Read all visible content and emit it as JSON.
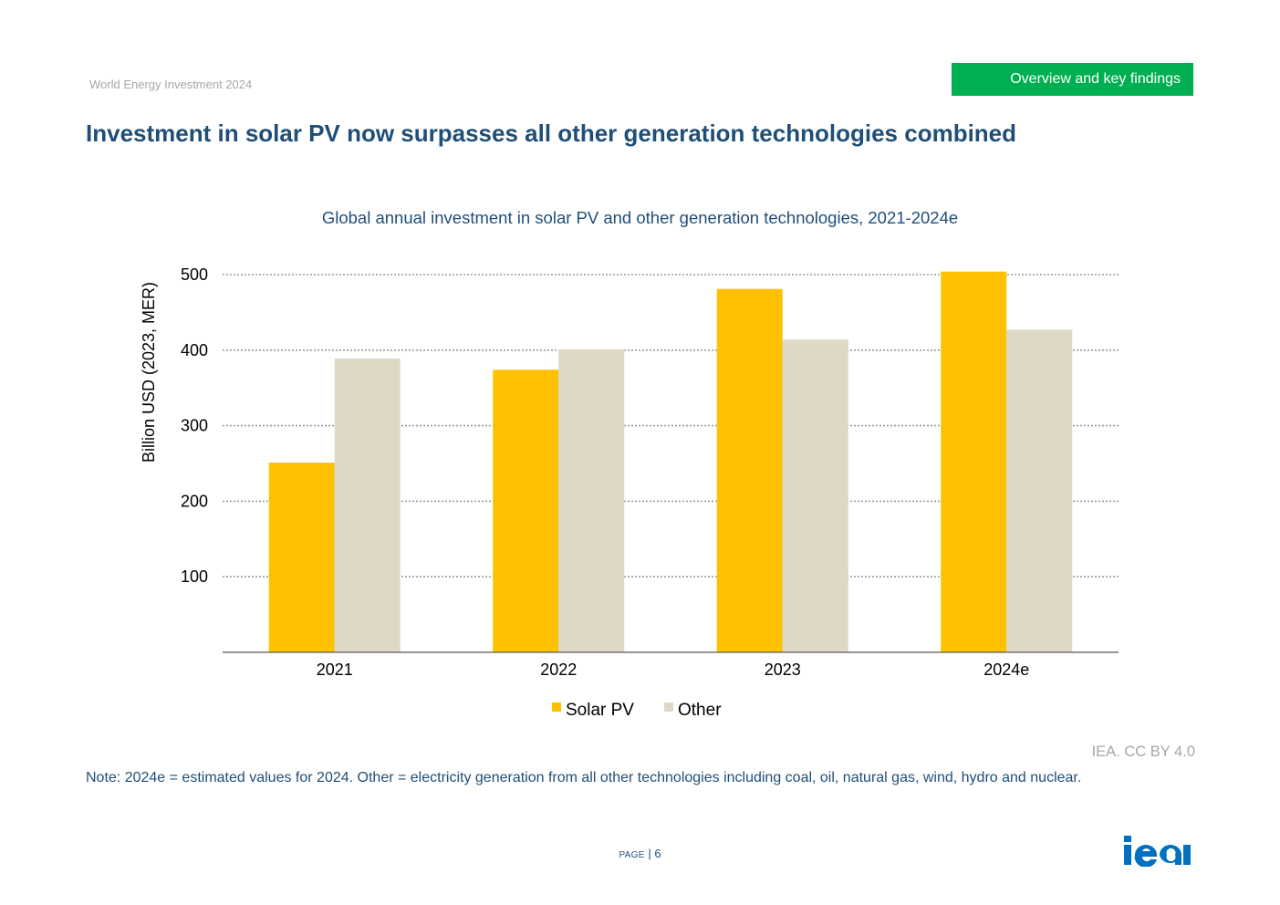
{
  "header": {
    "report_name": "World Energy Investment 2024",
    "section_label": "Overview and key findings",
    "section_color": "#00b050"
  },
  "page_title": "Investment in solar PV now surpasses all other generation technologies combined",
  "chart_data": {
    "type": "bar",
    "title": "Global annual investment in solar PV and other generation technologies, 2021-2024e",
    "xlabel": "",
    "ylabel": "Billion USD (2023, MER)",
    "ylim": [
      0,
      500
    ],
    "yticks": [
      100,
      200,
      300,
      400,
      500
    ],
    "grid": true,
    "legend_position": "bottom",
    "categories": [
      "2021",
      "2022",
      "2023",
      "2024e"
    ],
    "series": [
      {
        "name": "Solar PV",
        "color": "#ffc000",
        "values": [
          251,
          374,
          481,
          504
        ]
      },
      {
        "name": "Other",
        "color": "#ddd9c4",
        "values": [
          389,
          401,
          414,
          427
        ]
      }
    ]
  },
  "footer": {
    "credit": "IEA. CC BY 4.0",
    "note": "Note: 2024e = estimated values for 2024. Other = electricity generation from all other technologies including coal, oil, natural gas, wind, hydro and nuclear.",
    "page_label": "Page",
    "page_separator": "|",
    "page_number": "6",
    "logo_text": "iea",
    "logo_color": "#0070c0"
  }
}
